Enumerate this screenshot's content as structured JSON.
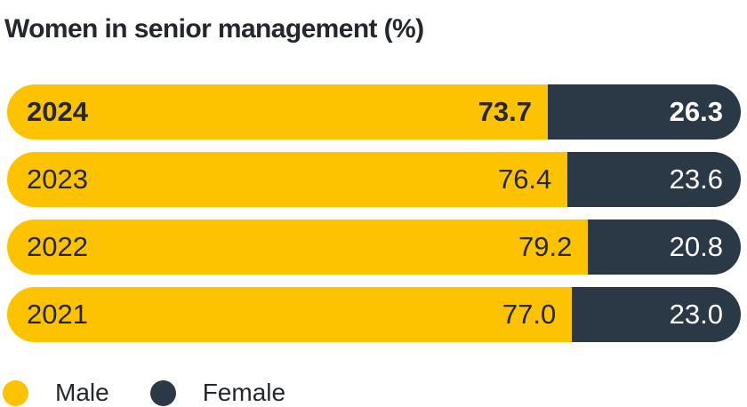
{
  "title": "Women in senior management (%)",
  "colors": {
    "male": "#fdc300",
    "female": "#2b3947",
    "dark_text": "#24282c",
    "light_text": "#ffffff",
    "background": "#ffffff"
  },
  "rows": [
    {
      "year": "2024",
      "male_label": "73.7",
      "female_label": "26.3",
      "male_pct": 73.7,
      "female_pct": 26.3,
      "bold": true
    },
    {
      "year": "2023",
      "male_label": "76.4",
      "female_label": "23.6",
      "male_pct": 76.4,
      "female_pct": 23.6,
      "bold": false
    },
    {
      "year": "2022",
      "male_label": "79.2",
      "female_label": "20.8",
      "male_pct": 79.2,
      "female_pct": 20.8,
      "bold": false
    },
    {
      "year": "2021",
      "male_label": "77.0",
      "female_label": "23.0",
      "male_pct": 77.0,
      "female_pct": 23.0,
      "bold": false
    }
  ],
  "legend": {
    "male_label": "Male",
    "female_label": "Female"
  },
  "chart_data": {
    "type": "bar",
    "orientation": "horizontal-stacked",
    "title": "Women in senior management (%)",
    "categories": [
      "2024",
      "2023",
      "2022",
      "2021"
    ],
    "series": [
      {
        "name": "Male",
        "color": "#fdc300",
        "values": [
          73.7,
          76.4,
          79.2,
          77.0
        ]
      },
      {
        "name": "Female",
        "color": "#2b3947",
        "values": [
          26.3,
          23.6,
          20.8,
          23.0
        ]
      }
    ],
    "value_labels_shown": true,
    "value_format": "one_decimal",
    "highlighted_category": "2024",
    "xlim": [
      0,
      100
    ],
    "axes_shown": false,
    "grid": false,
    "legend_entries": [
      "Male",
      "Female"
    ],
    "legend_position": "bottom-left"
  }
}
